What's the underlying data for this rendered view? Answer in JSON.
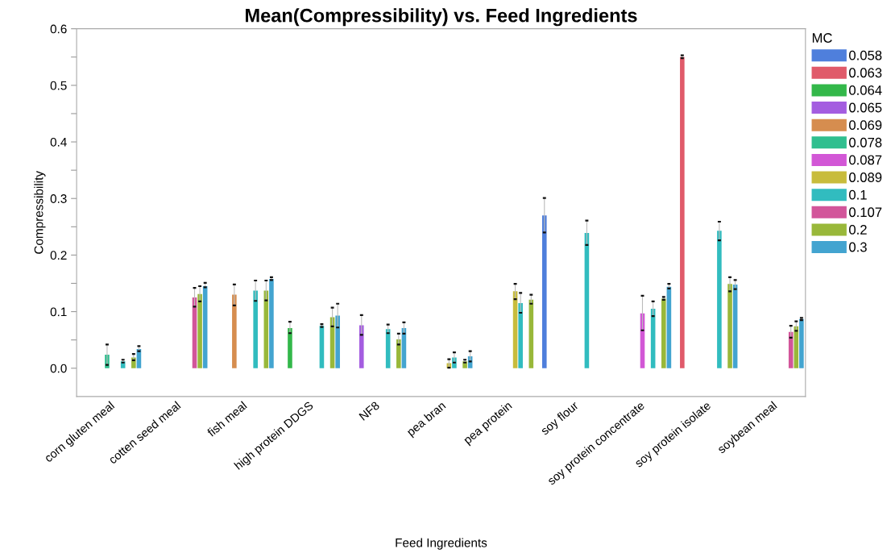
{
  "chart_data": {
    "type": "bar",
    "title": "Mean(Compressibility) vs. Feed Ingredients",
    "xlabel": "Feed Ingredients",
    "ylabel": "Compressibility",
    "legend_title": "MC",
    "categories": [
      "corn gluten meal",
      "cotten seed meal",
      "fish meal",
      "high protein DDGS",
      "NF8",
      "pea bran",
      "pea protein",
      "soy flour",
      "soy protein concentrate",
      "soy protein isolate",
      "soybean meal"
    ],
    "series": [
      {
        "name": "0.058",
        "color": "#4f7fdc",
        "values": [
          null,
          null,
          null,
          null,
          null,
          null,
          null,
          0.27,
          null,
          null,
          null
        ],
        "errors": [
          null,
          null,
          null,
          null,
          null,
          null,
          null,
          [
            0.24,
            0.301
          ],
          null,
          null,
          null
        ]
      },
      {
        "name": "0.063",
        "color": "#e05a6a",
        "values": [
          null,
          null,
          null,
          null,
          null,
          null,
          null,
          null,
          null,
          0.55,
          null
        ],
        "errors": [
          null,
          null,
          null,
          null,
          null,
          null,
          null,
          null,
          null,
          [
            0.548,
            0.553
          ],
          null
        ]
      },
      {
        "name": "0.064",
        "color": "#33b84a",
        "values": [
          null,
          null,
          null,
          0.071,
          null,
          null,
          null,
          null,
          null,
          null,
          null
        ],
        "errors": [
          null,
          null,
          null,
          [
            0.062,
            0.082
          ],
          null,
          null,
          null,
          null,
          null,
          null,
          null
        ]
      },
      {
        "name": "0.065",
        "color": "#a45de0",
        "values": [
          null,
          null,
          null,
          null,
          0.076,
          null,
          null,
          null,
          null,
          null,
          null
        ],
        "errors": [
          null,
          null,
          null,
          null,
          [
            0.059,
            0.094
          ],
          null,
          null,
          null,
          null,
          null,
          null
        ]
      },
      {
        "name": "0.069",
        "color": "#d68d4f",
        "values": [
          null,
          null,
          0.13,
          null,
          null,
          null,
          null,
          null,
          null,
          null,
          null
        ],
        "errors": [
          null,
          null,
          [
            0.111,
            0.148
          ],
          null,
          null,
          null,
          null,
          null,
          null,
          null,
          null
        ]
      },
      {
        "name": "0.078",
        "color": "#2fbf8f",
        "values": [
          0.024,
          null,
          null,
          null,
          null,
          null,
          null,
          null,
          null,
          null,
          null
        ],
        "errors": [
          [
            0.006,
            0.042
          ],
          null,
          null,
          null,
          null,
          null,
          null,
          null,
          null,
          null,
          null
        ]
      },
      {
        "name": "0.087",
        "color": "#d257d6",
        "values": [
          null,
          null,
          null,
          null,
          null,
          null,
          null,
          null,
          0.097,
          null,
          null
        ],
        "errors": [
          null,
          null,
          null,
          null,
          null,
          null,
          null,
          null,
          [
            0.067,
            0.128
          ],
          null,
          null
        ]
      },
      {
        "name": "0.089",
        "color": "#c8bc3c",
        "values": [
          null,
          null,
          null,
          null,
          null,
          0.009,
          0.136,
          null,
          null,
          null,
          null
        ],
        "errors": [
          null,
          null,
          null,
          null,
          null,
          [
            0.001,
            0.016
          ],
          [
            0.122,
            0.149
          ],
          null,
          null,
          null,
          null
        ]
      },
      {
        "name": "0.1",
        "color": "#31bcbf",
        "values": [
          0.012,
          null,
          0.137,
          0.075,
          0.069,
          0.019,
          0.115,
          0.239,
          0.105,
          0.243,
          null
        ],
        "errors": [
          [
            0.01,
            0.015
          ],
          null,
          [
            0.119,
            0.155
          ],
          [
            0.073,
            0.078
          ],
          [
            0.062,
            0.077
          ],
          [
            0.01,
            0.028
          ],
          [
            0.098,
            0.133
          ],
          [
            0.218,
            0.261
          ],
          [
            0.092,
            0.118
          ],
          [
            0.226,
            0.259
          ],
          null
        ]
      },
      {
        "name": "0.107",
        "color": "#d2559a",
        "values": [
          null,
          0.125,
          null,
          null,
          null,
          null,
          null,
          null,
          null,
          null,
          0.064
        ],
        "errors": [
          null,
          [
            0.109,
            0.142
          ],
          null,
          null,
          null,
          null,
          null,
          null,
          null,
          null,
          [
            0.054,
            0.075
          ]
        ]
      },
      {
        "name": "0.2",
        "color": "#99b83a",
        "values": [
          0.019,
          0.131,
          0.137,
          0.09,
          0.051,
          0.012,
          0.121,
          null,
          0.123,
          0.149,
          0.074
        ],
        "errors": [
          [
            0.014,
            0.025
          ],
          [
            0.118,
            0.145
          ],
          [
            0.12,
            0.155
          ],
          [
            0.074,
            0.107
          ],
          [
            0.042,
            0.061
          ],
          [
            0.01,
            0.015
          ],
          [
            0.114,
            0.13
          ],
          null,
          [
            0.121,
            0.126
          ],
          [
            0.136,
            0.161
          ],
          [
            0.066,
            0.083
          ]
        ]
      },
      {
        "name": "0.3",
        "color": "#43a4d0",
        "values": [
          0.034,
          0.145,
          0.158,
          0.093,
          0.071,
          0.021,
          null,
          null,
          0.144,
          0.148,
          0.087
        ],
        "errors": [
          [
            0.03,
            0.039
          ],
          [
            0.143,
            0.151
          ],
          [
            0.156,
            0.161
          ],
          [
            0.072,
            0.114
          ],
          [
            0.061,
            0.081
          ],
          [
            0.012,
            0.03
          ],
          null,
          null,
          [
            0.141,
            0.149
          ],
          [
            0.14,
            0.156
          ],
          [
            0.085,
            0.089
          ]
        ]
      }
    ],
    "ylim": [
      -0.05,
      0.6
    ],
    "yticks": [
      {
        "value": 0.0,
        "label": "0.0"
      },
      {
        "value": 0.05,
        "label": null
      },
      0.1,
      {
        "value": 0.15,
        "label": null
      },
      0.2,
      {
        "value": 0.25,
        "label": null
      },
      0.3,
      {
        "value": 0.35,
        "label": null
      },
      0.4,
      {
        "value": 0.45,
        "label": null
      },
      0.5,
      {
        "value": 0.55,
        "label": null
      },
      0.6
    ],
    "grid": false,
    "legend": "right"
  }
}
